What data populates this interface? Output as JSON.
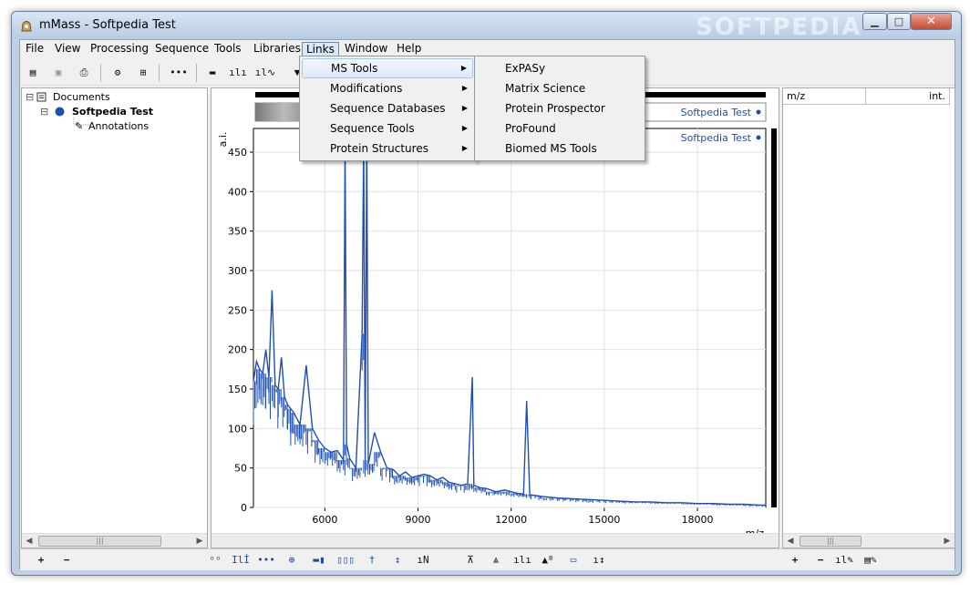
{
  "window": {
    "title": "mMass - Softpedia Test",
    "watermark": "SOFTPEDIA",
    "minimize_label": "▁",
    "maximize_label": "□",
    "close_label": "✕"
  },
  "menubar": [
    {
      "label": "File"
    },
    {
      "label": "View"
    },
    {
      "label": "Processing"
    },
    {
      "label": "Sequence"
    },
    {
      "label": "Tools"
    },
    {
      "label": "Libraries"
    },
    {
      "label": "Links"
    },
    {
      "label": "Window"
    },
    {
      "label": "Help"
    }
  ],
  "links_menu": {
    "items": [
      "MS Tools",
      "Modifications",
      "Sequence Databases",
      "Sequence Tools",
      "Protein Structures"
    ],
    "submenu_arrow": "▶"
  },
  "ms_tools_submenu": {
    "items": [
      "ExPASy",
      "Matrix Science",
      "Protein Prospector",
      "ProFound",
      "Biomed MS Tools"
    ]
  },
  "document_tree": {
    "root": "Documents",
    "document": "Softpedia Test",
    "child": "Annotations"
  },
  "peak_list": {
    "col_mz": "m/z",
    "col_int": "int."
  },
  "spectrum_overview": {
    "legend": "Softpedia Test"
  },
  "chart_data": {
    "type": "line",
    "legend": "Softpedia Test",
    "xlabel": "m/z",
    "ylabel": "a.i.",
    "xlim": [
      3700,
      20200
    ],
    "ylim": [
      0,
      480
    ],
    "x_ticks": [
      "6000",
      "9000",
      "12000",
      "15000",
      "18000"
    ],
    "y_ticks": [
      "0",
      "50",
      "100",
      "150",
      "200",
      "250",
      "300",
      "350",
      "400",
      "450"
    ],
    "grid": true,
    "color": "#1f4fb3",
    "series": [
      {
        "x": [
          3700,
          3800,
          3900,
          4000,
          4100,
          4200,
          4300,
          4400,
          4500,
          4600,
          4700,
          4800,
          4900,
          5000,
          5200,
          5400,
          5600,
          5800,
          6000,
          6200,
          6400,
          6600,
          6650,
          6700,
          6800,
          7000,
          7200,
          7250,
          7300,
          7350,
          7400,
          7600,
          7800,
          8000,
          8200,
          8400,
          8600,
          8800,
          9000,
          9200,
          9400,
          9600,
          9800,
          10000,
          10200,
          10400,
          10600,
          10750,
          10800,
          11000,
          11200,
          11500,
          11800,
          12000,
          12200,
          12400,
          12500,
          12600,
          12800,
          13000,
          13500,
          14000,
          14500,
          15000,
          15500,
          16000,
          16500,
          17000,
          17500,
          18000,
          18500,
          19000,
          19500,
          20000,
          20200
        ],
        "y": [
          160,
          185,
          175,
          170,
          200,
          165,
          275,
          155,
          150,
          190,
          140,
          130,
          125,
          120,
          105,
          180,
          100,
          85,
          75,
          70,
          72,
          60,
          465,
          80,
          62,
          50,
          220,
          465,
          60,
          470,
          55,
          95,
          70,
          50,
          48,
          40,
          45,
          38,
          40,
          42,
          40,
          35,
          38,
          32,
          30,
          28,
          30,
          165,
          28,
          25,
          24,
          20,
          22,
          20,
          18,
          17,
          135,
          16,
          15,
          14,
          12,
          11,
          10,
          9,
          8,
          7,
          7,
          6,
          6,
          5,
          5,
          4,
          4,
          3,
          3
        ]
      }
    ]
  }
}
